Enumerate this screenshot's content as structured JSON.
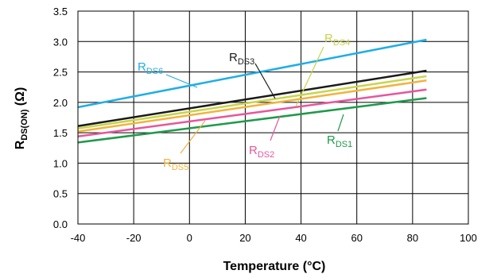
{
  "chart_data": {
    "type": "line",
    "xlabel": "Temperature (°C)",
    "ylabel": {
      "main": "R",
      "sub": "DS(ON)",
      "unit": " (Ω)"
    },
    "xlim": [
      -40,
      100
    ],
    "ylim": [
      0,
      3.5
    ],
    "xticks": [
      "-40",
      "-20",
      "0",
      "20",
      "40",
      "60",
      "80",
      "100"
    ],
    "yticks": [
      "0.0",
      "0.5",
      "1.0",
      "1.5",
      "2.0",
      "2.5",
      "3.0",
      "3.5"
    ],
    "grid": true,
    "series": [
      {
        "name": "RDS6",
        "label_main": "R",
        "label_sub": "DS6",
        "color": "#1eaee6",
        "x": [
          -40,
          85
        ],
        "y": [
          1.92,
          3.03
        ]
      },
      {
        "name": "RDS3",
        "label_main": "R",
        "label_sub": "DS3",
        "color": "#1a1a1a",
        "x": [
          -40,
          85
        ],
        "y": [
          1.61,
          2.52
        ]
      },
      {
        "name": "RDS4",
        "label_main": "R",
        "label_sub": "DS4",
        "color": "#c8d44a",
        "x": [
          -40,
          85
        ],
        "y": [
          1.57,
          2.43
        ]
      },
      {
        "name": "RDS5",
        "label_main": "R",
        "label_sub": "DS5",
        "color": "#f2b33d",
        "x": [
          -40,
          85
        ],
        "y": [
          1.52,
          2.36
        ]
      },
      {
        "name": "RDS2",
        "label_main": "R",
        "label_sub": "DS2",
        "color": "#e8559a",
        "x": [
          -40,
          85
        ],
        "y": [
          1.44,
          2.21
        ]
      },
      {
        "name": "RDS1",
        "label_main": "R",
        "label_sub": "DS1",
        "color": "#1e9a4a",
        "x": [
          -40,
          85
        ],
        "y": [
          1.34,
          2.07
        ]
      }
    ]
  }
}
